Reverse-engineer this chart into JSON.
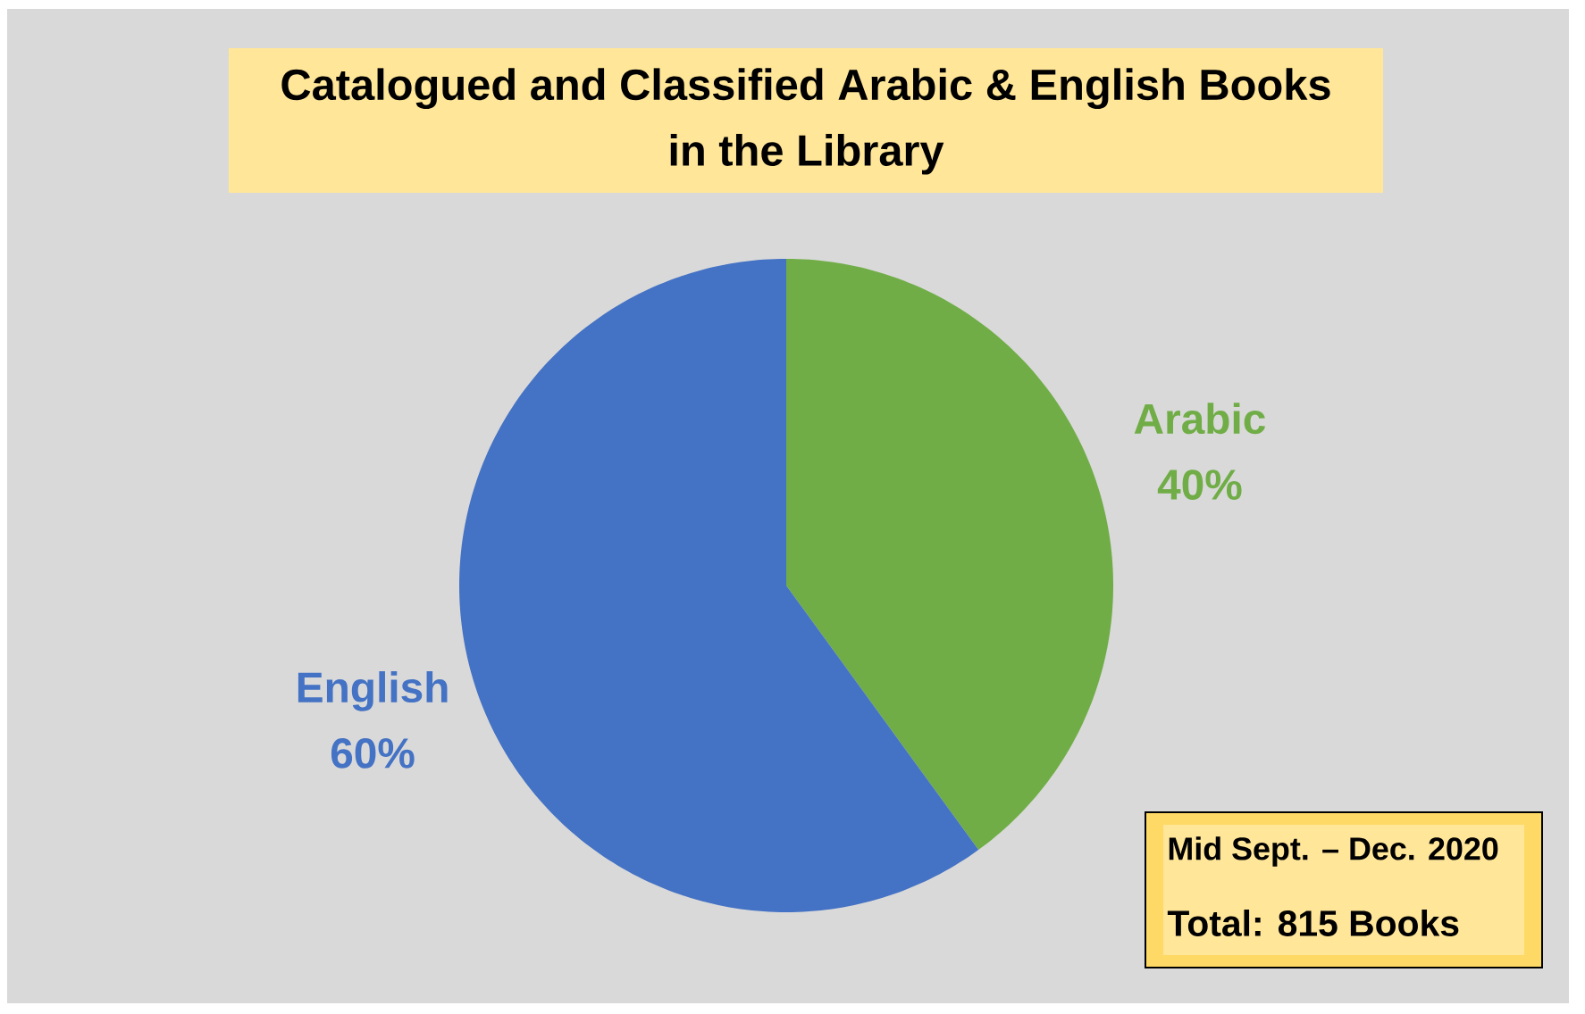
{
  "chart_data": {
    "type": "pie",
    "title": "Catalogued and Classified Arabic & English Books in the Library",
    "categories": [
      "Arabic",
      "English"
    ],
    "values": [
      40,
      60
    ],
    "colors": [
      "#70ad47",
      "#4472c4"
    ],
    "value_labels": [
      "40%",
      "60%"
    ],
    "annotations": [
      "Mid Sept. – Dec. 2020",
      "Total: 815 Books"
    ]
  }
}
